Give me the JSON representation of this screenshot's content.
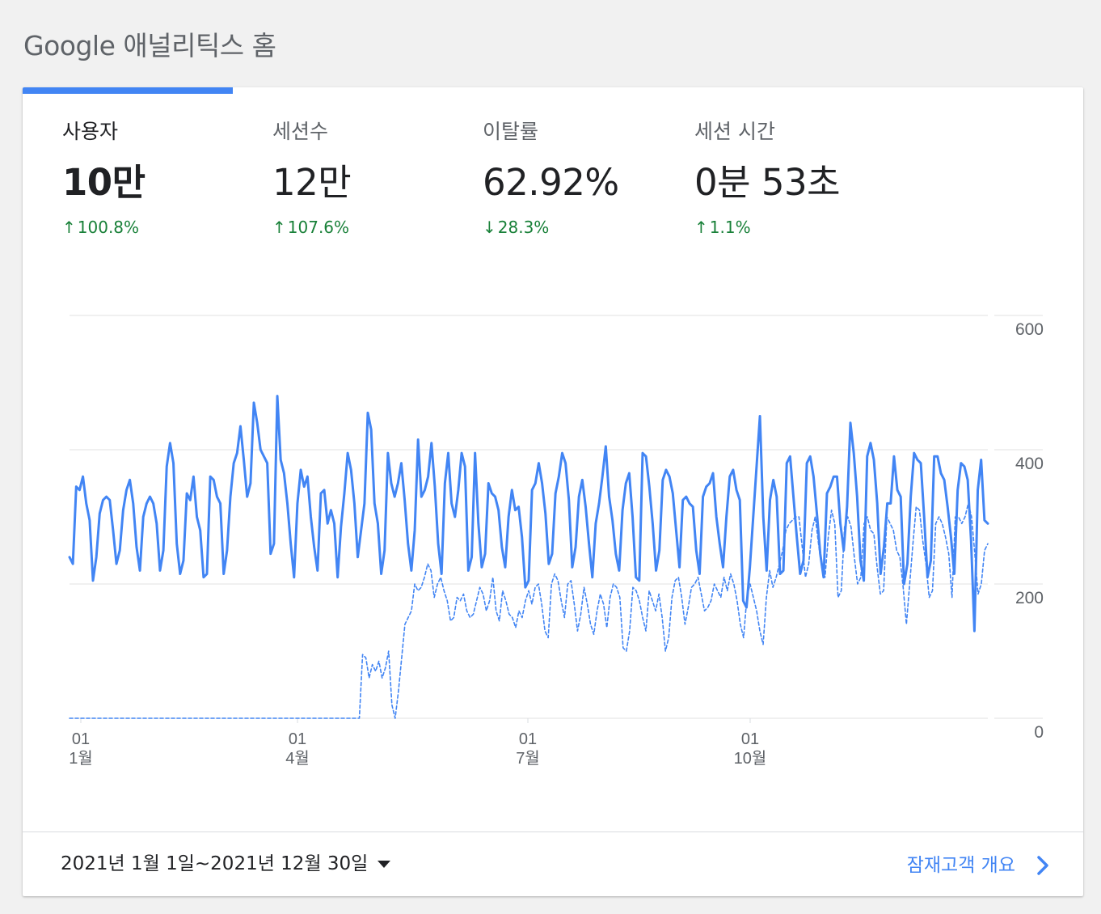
{
  "page": {
    "title": "Google 애널리틱스 홈"
  },
  "metrics": [
    {
      "label": "사용자",
      "value": "10만",
      "change": "100.8%",
      "direction": "up"
    },
    {
      "label": "세션수",
      "value": "12만",
      "change": "107.6%",
      "direction": "up"
    },
    {
      "label": "이탈률",
      "value": "62.92%",
      "change": "28.3%",
      "direction": "down"
    },
    {
      "label": "세션 시간",
      "value": "0분 53초",
      "change": "1.1%",
      "direction": "up"
    }
  ],
  "colors": {
    "accent": "#4285f4",
    "positive": "#188038",
    "text": "#202124",
    "muted": "#5f6368"
  },
  "chart_data": {
    "type": "line",
    "y_ticks": [
      "600",
      "400",
      "200",
      "0"
    ],
    "ylim": [
      0,
      600
    ],
    "x_ticks": [
      {
        "day": "01",
        "month": "1월"
      },
      {
        "day": "01",
        "month": "4월"
      },
      {
        "day": "01",
        "month": "7월"
      },
      {
        "day": "01",
        "month": "10월"
      }
    ],
    "grid": true,
    "series": [
      {
        "style": "solid",
        "values": [
          240,
          230,
          345,
          340,
          360,
          320,
          295,
          205,
          240,
          305,
          325,
          330,
          325,
          280,
          230,
          250,
          310,
          340,
          355,
          320,
          255,
          220,
          300,
          320,
          330,
          320,
          290,
          220,
          250,
          375,
          410,
          380,
          260,
          215,
          235,
          335,
          325,
          360,
          300,
          280,
          210,
          215,
          360,
          355,
          330,
          320,
          215,
          250,
          330,
          380,
          395,
          435,
          385,
          330,
          350,
          470,
          440,
          400,
          390,
          380,
          245,
          260,
          480,
          385,
          365,
          320,
          260,
          210,
          320,
          370,
          345,
          360,
          300,
          255,
          220,
          335,
          340,
          290,
          310,
          290,
          210,
          285,
          335,
          395,
          370,
          320,
          240,
          280,
          320,
          455,
          430,
          320,
          290,
          215,
          250,
          395,
          350,
          330,
          350,
          380,
          325,
          260,
          220,
          280,
          415,
          330,
          340,
          360,
          410,
          345,
          260,
          215,
          350,
          395,
          320,
          300,
          340,
          395,
          375,
          220,
          240,
          395,
          290,
          225,
          245,
          350,
          335,
          330,
          310,
          255,
          225,
          300,
          340,
          310,
          315,
          270,
          195,
          205,
          340,
          350,
          380,
          350,
          305,
          230,
          245,
          335,
          360,
          395,
          380,
          325,
          225,
          255,
          330,
          355,
          315,
          260,
          210,
          290,
          320,
          360,
          405,
          330,
          295,
          245,
          220,
          310,
          350,
          365,
          300,
          210,
          205,
          395,
          390,
          345,
          290,
          220,
          250,
          355,
          370,
          360,
          335,
          280,
          225,
          325,
          330,
          320,
          315,
          250,
          215,
          330,
          345,
          350,
          365,
          300,
          260,
          225,
          300,
          360,
          370,
          340,
          325,
          175,
          165,
          225,
          300,
          375,
          450,
          300,
          220,
          325,
          355,
          330,
          215,
          220,
          380,
          390,
          330,
          270,
          215,
          235,
          380,
          390,
          360,
          305,
          245,
          210,
          335,
          345,
          360,
          360,
          290,
          250,
          315,
          440,
          395,
          330,
          235,
          205,
          390,
          410,
          385,
          320,
          215,
          255,
          320,
          320,
          390,
          340,
          330,
          200,
          230,
          330,
          395,
          385,
          380,
          300,
          210,
          235,
          390,
          390,
          365,
          355,
          315,
          270,
          215,
          340,
          380,
          375,
          355,
          265,
          130,
          340,
          385,
          295,
          290
        ]
      },
      {
        "style": "dashed",
        "values": [
          0,
          0,
          0,
          0,
          0,
          0,
          0,
          0,
          0,
          0,
          0,
          0,
          0,
          0,
          0,
          0,
          0,
          0,
          0,
          0,
          0,
          0,
          0,
          0,
          0,
          0,
          0,
          0,
          0,
          0,
          0,
          0,
          0,
          0,
          0,
          0,
          0,
          0,
          0,
          0,
          0,
          0,
          0,
          0,
          0,
          0,
          0,
          0,
          0,
          0,
          0,
          0,
          0,
          0,
          0,
          0,
          0,
          0,
          0,
          0,
          0,
          0,
          0,
          0,
          0,
          0,
          0,
          0,
          0,
          0,
          0,
          0,
          0,
          0,
          0,
          0,
          0,
          0,
          0,
          0,
          0,
          0,
          0,
          0,
          0,
          0,
          0,
          0,
          0,
          0,
          95,
          90,
          60,
          80,
          70,
          85,
          60,
          75,
          100,
          20,
          0,
          40,
          90,
          140,
          150,
          160,
          200,
          190,
          195,
          210,
          230,
          220,
          180,
          200,
          210,
          190,
          175,
          145,
          150,
          180,
          175,
          185,
          160,
          150,
          155,
          175,
          195,
          185,
          160,
          175,
          210,
          160,
          145,
          190,
          175,
          155,
          150,
          135,
          160,
          150,
          175,
          190,
          170,
          195,
          200,
          170,
          130,
          120,
          200,
          215,
          205,
          175,
          150,
          200,
          205,
          170,
          130,
          155,
          195,
          170,
          140,
          125,
          160,
          185,
          170,
          135,
          180,
          200,
          195,
          180,
          105,
          100,
          130,
          195,
          190,
          175,
          150,
          130,
          190,
          175,
          160,
          185,
          150,
          100,
          120,
          180,
          205,
          210,
          180,
          140,
          165,
          195,
          200,
          210,
          185,
          160,
          165,
          175,
          200,
          190,
          180,
          210,
          190,
          215,
          200,
          175,
          140,
          120,
          180,
          200,
          180,
          160,
          130,
          110,
          180,
          220,
          195,
          210,
          230,
          250,
          280,
          290,
          295,
          300,
          300,
          255,
          210,
          230,
          280,
          300,
          260,
          225,
          210,
          270,
          310,
          290,
          180,
          190,
          285,
          300,
          285,
          240,
          200,
          210,
          290,
          300,
          280,
          275,
          225,
          185,
          190,
          300,
          290,
          280,
          250,
          240,
          195,
          140,
          200,
          260,
          315,
          310,
          265,
          230,
          180,
          190,
          290,
          300,
          290,
          270,
          245,
          180,
          300,
          300,
          290,
          300,
          320,
          300,
          245,
          185,
          200,
          250,
          260
        ]
      }
    ]
  },
  "footer": {
    "date_range": "2021년 1월 1일~2021년 12월 30일",
    "link_label": "잠재고객 개요"
  }
}
